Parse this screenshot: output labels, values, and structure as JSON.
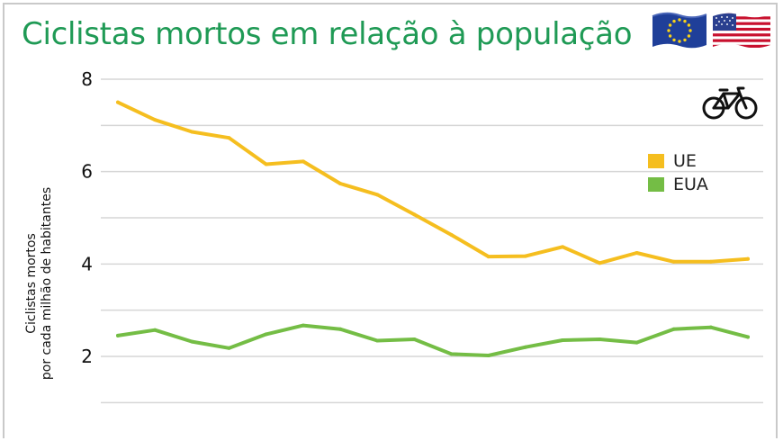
{
  "title": "Ciclistas mortos em relação à população",
  "icons": [
    "eu-flag-icon",
    "us-flag-icon",
    "bicycle-icon"
  ],
  "colors": {
    "title": "#1f9a55",
    "ue": "#f5be1f",
    "eua": "#74bd45",
    "grid": "#d6d6d6"
  },
  "chart_data": {
    "type": "line",
    "title": "Ciclistas mortos em relação à população",
    "xlabel": "",
    "ylabel": [
      "Ciclistas mortos",
      "por cada milhão de habitantes"
    ],
    "ylim": [
      0,
      8
    ],
    "yticks": [
      2,
      4,
      6,
      8
    ],
    "grid": true,
    "legend_position": "right",
    "x": [
      1,
      2,
      3,
      4,
      5,
      6,
      7,
      8,
      9,
      10,
      11,
      12,
      13,
      14,
      15,
      16,
      17,
      18
    ],
    "series": [
      {
        "name": "UE",
        "color": "#f5be1f",
        "values": [
          7.5,
          7.12,
          6.86,
          6.73,
          6.16,
          6.22,
          5.74,
          5.5,
          5.07,
          4.63,
          4.16,
          4.17,
          4.37,
          4.02,
          4.24,
          4.05,
          4.05,
          4.11
        ]
      },
      {
        "name": "EUA",
        "color": "#74bd45",
        "values": [
          2.45,
          2.57,
          2.32,
          2.18,
          2.48,
          2.67,
          2.59,
          2.34,
          2.37,
          2.05,
          2.02,
          2.2,
          2.35,
          2.37,
          2.3,
          2.59,
          2.63,
          2.42
        ]
      }
    ]
  }
}
